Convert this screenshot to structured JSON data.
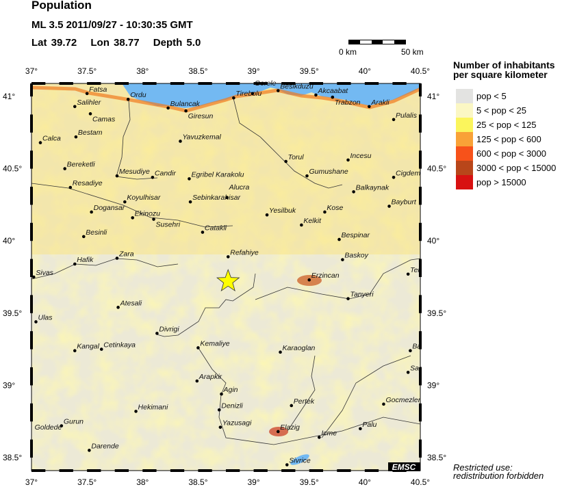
{
  "header": {
    "title": "Population",
    "event": "ML 3.5  2011/09/27 - 10:30:35 GMT",
    "lat": "Lat 39.72",
    "lon": "Lon 38.77",
    "depth": "Depth  5.0"
  },
  "scale": {
    "start_label": "0 km",
    "end_label": "50 km"
  },
  "map": {
    "lon_range": [
      37,
      40.5
    ],
    "lat_range": [
      38.41,
      41.09
    ],
    "lon_ticks": [
      "37°",
      "37.5°",
      "38°",
      "38.5°",
      "39°",
      "39.5°",
      "40°",
      "40.5°"
    ],
    "lat_ticks": [
      "38.5°",
      "39°",
      "39.5°",
      "40°",
      "40.5°",
      "41°"
    ],
    "epicenter": {
      "lat": 39.72,
      "lon": 38.77,
      "icon": "star-icon",
      "color": "#ffff00"
    },
    "sea_color": "#73b9f2",
    "credit": "EMSC",
    "towns": [
      {
        "name": "Fatsa",
        "lon": 37.5,
        "lat": 41.02
      },
      {
        "name": "Ordu",
        "lon": 37.87,
        "lat": 40.98
      },
      {
        "name": "Salihler",
        "lon": 37.39,
        "lat": 40.93
      },
      {
        "name": "Camas",
        "lon": 37.53,
        "lat": 40.88
      },
      {
        "name": "Bulancak",
        "lon": 38.23,
        "lat": 40.92
      },
      {
        "name": "Giresun",
        "lon": 38.39,
        "lat": 40.9
      },
      {
        "name": "Bestam",
        "lon": 37.4,
        "lat": 40.72
      },
      {
        "name": "Calca",
        "lon": 37.08,
        "lat": 40.68
      },
      {
        "name": "Yavuzkemal",
        "lon": 38.34,
        "lat": 40.69
      },
      {
        "name": "Bereketli",
        "lon": 37.3,
        "lat": 40.5
      },
      {
        "name": "Mesudiye",
        "lon": 37.77,
        "lat": 40.45
      },
      {
        "name": "Candir",
        "lon": 38.09,
        "lat": 40.44
      },
      {
        "name": "Egribel Karakolu",
        "lon": 38.42,
        "lat": 40.43
      },
      {
        "name": "Resadiye",
        "lon": 37.35,
        "lat": 40.37
      },
      {
        "name": "Koyulhisar",
        "lon": 37.84,
        "lat": 40.27
      },
      {
        "name": "Sebinkarahisar",
        "lon": 38.43,
        "lat": 40.27
      },
      {
        "name": "Dogansar",
        "lon": 37.54,
        "lat": 40.2
      },
      {
        "name": "Ekinozu",
        "lon": 37.91,
        "lat": 40.16
      },
      {
        "name": "Susehri",
        "lon": 38.1,
        "lat": 40.15
      },
      {
        "name": "Catakli",
        "lon": 38.54,
        "lat": 40.06
      },
      {
        "name": "Tirebolu",
        "lon": 38.82,
        "lat": 40.99
      },
      {
        "name": "Gorele",
        "lon": 38.99,
        "lat": 41.02
      },
      {
        "name": "Besikduzu",
        "lon": 39.22,
        "lat": 41.04
      },
      {
        "name": "Akcaabat",
        "lon": 39.56,
        "lat": 41.01
      },
      {
        "name": "Trabzon",
        "lon": 39.71,
        "lat": 40.995
      },
      {
        "name": "Arakli",
        "lon": 40.04,
        "lat": 40.93
      },
      {
        "name": "Pulalis",
        "lon": 40.26,
        "lat": 40.84
      },
      {
        "name": "Torul",
        "lon": 39.29,
        "lat": 40.55
      },
      {
        "name": "Incesu",
        "lon": 39.85,
        "lat": 40.56
      },
      {
        "name": "Gumushane",
        "lon": 39.48,
        "lat": 40.45
      },
      {
        "name": "Cigdem",
        "lon": 40.26,
        "lat": 40.44
      },
      {
        "name": "Balkaynak",
        "lon": 39.9,
        "lat": 40.34
      },
      {
        "name": "Alucra",
        "lon": 38.76,
        "lat": 40.3
      },
      {
        "name": "Bayburt",
        "lon": 40.22,
        "lat": 40.24
      },
      {
        "name": "Yesilbuk",
        "lon": 39.12,
        "lat": 40.18
      },
      {
        "name": "Kose",
        "lon": 39.64,
        "lat": 40.2
      },
      {
        "name": "Kelkit",
        "lon": 39.43,
        "lat": 40.11
      },
      {
        "name": "Besinli",
        "lon": 37.47,
        "lat": 40.03
      },
      {
        "name": "Bespinar",
        "lon": 39.77,
        "lat": 40.01
      },
      {
        "name": "Zara",
        "lon": 37.77,
        "lat": 39.88
      },
      {
        "name": "Hafik",
        "lon": 37.39,
        "lat": 39.84
      },
      {
        "name": "Refahiye",
        "lon": 38.77,
        "lat": 39.89
      },
      {
        "name": "Baskoy",
        "lon": 39.8,
        "lat": 39.87
      },
      {
        "name": "Sivas",
        "lon": 37.02,
        "lat": 39.75
      },
      {
        "name": "Erzincan",
        "lon": 39.5,
        "lat": 39.73
      },
      {
        "name": "Ter",
        "lon": 40.39,
        "lat": 39.77
      },
      {
        "name": "Tanyeri",
        "lon": 39.85,
        "lat": 39.6
      },
      {
        "name": "Atesali",
        "lon": 37.78,
        "lat": 39.54
      },
      {
        "name": "Ulas",
        "lon": 37.04,
        "lat": 39.44
      },
      {
        "name": "Divrigi",
        "lon": 38.13,
        "lat": 39.36
      },
      {
        "name": "Kangal",
        "lon": 37.39,
        "lat": 39.24
      },
      {
        "name": "Cetinkaya",
        "lon": 37.63,
        "lat": 39.25
      },
      {
        "name": "Kemaliye",
        "lon": 38.5,
        "lat": 39.26
      },
      {
        "name": "Karaoglan",
        "lon": 39.24,
        "lat": 39.23
      },
      {
        "name": "Ba",
        "lon": 40.41,
        "lat": 39.24
      },
      {
        "name": "Arapkir",
        "lon": 38.49,
        "lat": 39.03
      },
      {
        "name": "Sar",
        "lon": 40.39,
        "lat": 39.09
      },
      {
        "name": "Agin",
        "lon": 38.71,
        "lat": 38.94
      },
      {
        "name": "Pertek",
        "lon": 39.34,
        "lat": 38.86
      },
      {
        "name": "Gocmezler",
        "lon": 40.17,
        "lat": 38.87
      },
      {
        "name": "Denizli",
        "lon": 38.69,
        "lat": 38.83
      },
      {
        "name": "Hekimani",
        "lon": 37.94,
        "lat": 38.82
      },
      {
        "name": "Gurun",
        "lon": 37.27,
        "lat": 38.72
      },
      {
        "name": "Goldede",
        "lon": 37.01,
        "lat": 38.68,
        "no_dot": true
      },
      {
        "name": "Yazusagi",
        "lon": 38.7,
        "lat": 38.71
      },
      {
        "name": "Elazig",
        "lon": 39.22,
        "lat": 38.68
      },
      {
        "name": "Icme",
        "lon": 39.59,
        "lat": 38.64
      },
      {
        "name": "Palu",
        "lon": 39.96,
        "lat": 38.7
      },
      {
        "name": "Darende",
        "lon": 37.52,
        "lat": 38.55
      },
      {
        "name": "Sivrice",
        "lon": 39.3,
        "lat": 38.45
      }
    ]
  },
  "legend": {
    "title_line1": "Number of inhabitants",
    "title_line2": "per square kilometer",
    "items": [
      {
        "label": "pop < 5",
        "color": "#e3e3e1"
      },
      {
        "label": "5 < pop < 25",
        "color": "#fbf7c4"
      },
      {
        "label": "25 < pop < 125",
        "color": "#fbf55c"
      },
      {
        "label": "125 < pop < 600",
        "color": "#f9a237"
      },
      {
        "label": "600 < pop < 3000",
        "color": "#f7521a"
      },
      {
        "label": "3000 < pop < 15000",
        "color": "#b8461a"
      },
      {
        "label": "pop > 15000",
        "color": "#d81111"
      }
    ]
  },
  "footer": {
    "restricted_line1": "Restricted use:",
    "restricted_line2": "redistribution forbidden"
  }
}
